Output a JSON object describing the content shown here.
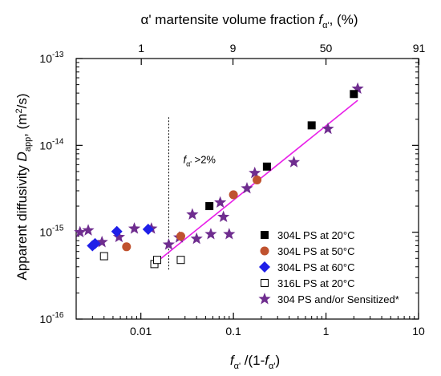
{
  "chart_data": {
    "type": "scatter",
    "title": "",
    "xlabel": {
      "f": "f",
      "alpha_sub": "α'",
      "middle": " /(1-",
      "f2": "f",
      "alpha_sub2": "α'",
      "end": ")"
    },
    "ylabel": {
      "prefix": "Apparent diffusivity ",
      "D": "D",
      "sub": "app",
      "suffix": ", (m",
      "sup": "2",
      "end": "/s)"
    },
    "top_xlabel": {
      "prefix": "α' martensite volume fraction ",
      "f": "f",
      "sub": "α'",
      "suffix": ", (%)"
    },
    "x_scale": "log",
    "y_scale": "log",
    "xlim": [
      0.002,
      10
    ],
    "ylim": [
      1e-16,
      1e-13
    ],
    "x_ticks": [
      {
        "value": 0.01,
        "label": "0.01"
      },
      {
        "value": 0.1,
        "label": "0.1"
      },
      {
        "value": 1,
        "label": "1"
      },
      {
        "value": 10,
        "label": "10"
      }
    ],
    "y_ticks": [
      {
        "value": 1e-16,
        "base": "10",
        "exp": "-16"
      },
      {
        "value": 1e-15,
        "base": "10",
        "exp": "-15"
      },
      {
        "value": 1e-14,
        "base": "10",
        "exp": "-14"
      },
      {
        "value": 1e-13,
        "base": "10",
        "exp": "-13"
      }
    ],
    "top_ticks": [
      {
        "value": 0.0101,
        "label": "1"
      },
      {
        "value": 0.0989,
        "label": "9"
      },
      {
        "value": 1.0,
        "label": "50"
      },
      {
        "value": 10.1,
        "label": "91"
      }
    ],
    "annotation": {
      "f": "f",
      "sub": "α'",
      "text": " >2%",
      "x": 0.02
    },
    "legend_position": "bottom-right",
    "series": [
      {
        "name": "304L PS at 20°C",
        "marker": "square-filled",
        "color": "#000000",
        "points": [
          [
            0.055,
            2e-15
          ],
          [
            0.23,
            5.7e-15
          ],
          [
            0.7,
            1.7e-14
          ],
          [
            2.0,
            3.9e-14
          ]
        ]
      },
      {
        "name": "304L PS at 50°C",
        "marker": "circle",
        "color": "#c0522f",
        "points": [
          [
            0.007,
            6.8e-16
          ],
          [
            0.027,
            9e-16
          ],
          [
            0.1,
            2.7e-15
          ],
          [
            0.18,
            4e-15
          ]
        ]
      },
      {
        "name": "304L PS at 60°C",
        "marker": "diamond",
        "color": "#1f1fe8",
        "points": [
          [
            0.003,
            7e-16
          ],
          [
            0.0032,
            7.4e-16
          ],
          [
            0.0055,
            1.02e-15
          ],
          [
            0.012,
            1.08e-15
          ]
        ]
      },
      {
        "name": "316L PS at 20°C",
        "marker": "square-open",
        "color": "#000000",
        "points": [
          [
            0.004,
            5.3e-16
          ],
          [
            0.014,
            4.3e-16
          ],
          [
            0.015,
            4.8e-16
          ],
          [
            0.027,
            4.8e-16
          ]
        ]
      },
      {
        "name": "304 PS and/or Sensitized*",
        "marker": "star",
        "color": "#6f2d8f",
        "points": [
          [
            0.0022,
            1e-15
          ],
          [
            0.0027,
            1.05e-15
          ],
          [
            0.0038,
            7.7e-16
          ],
          [
            0.0058,
            8.8e-16
          ],
          [
            0.0085,
            1.1e-15
          ],
          [
            0.013,
            1.1e-15
          ],
          [
            0.02,
            7.2e-16
          ],
          [
            0.026,
            8.7e-16
          ],
          [
            0.036,
            1.6e-15
          ],
          [
            0.04,
            8.4e-16
          ],
          [
            0.057,
            9.5e-16
          ],
          [
            0.072,
            2.2e-15
          ],
          [
            0.078,
            1.5e-15
          ],
          [
            0.09,
            9.5e-16
          ],
          [
            0.14,
            3.2e-15
          ],
          [
            0.17,
            4.8e-15
          ],
          [
            0.45,
            6.4e-15
          ],
          [
            1.05,
            1.55e-14
          ],
          [
            2.2,
            4.5e-14
          ]
        ]
      }
    ],
    "fit_line": {
      "color": "#e81ee8",
      "x": [
        0.015,
        2.2
      ],
      "y": [
        4.6e-16,
        3.3e-14
      ]
    }
  }
}
